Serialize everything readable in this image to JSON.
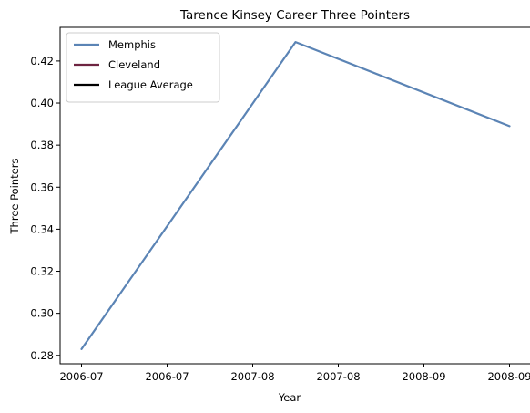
{
  "chart_data": {
    "type": "line",
    "title": "Tarence Kinsey Career Three Pointers",
    "xlabel": "Year",
    "ylabel": "Three Pointers",
    "x_ticks": [
      "2006-07",
      "2006-07",
      "2007-08",
      "2007-08",
      "2008-09",
      "2008-09"
    ],
    "y_ticks": [
      "0.28",
      "0.30",
      "0.32",
      "0.34",
      "0.36",
      "0.38",
      "0.40",
      "0.42"
    ],
    "ylim": [
      0.276,
      0.436
    ],
    "x_range": [
      -0.1,
      2.1
    ],
    "grid": false,
    "legend_position": "top-left",
    "series": [
      {
        "name": "Memphis",
        "color": "#5b84b5",
        "x": [
          0,
          1,
          2
        ],
        "values": [
          0.283,
          0.429,
          0.389
        ]
      },
      {
        "name": "Cleveland",
        "color": "#6e2441",
        "x": [],
        "values": []
      },
      {
        "name": "League Average",
        "color": "#000000",
        "x": [],
        "values": []
      }
    ]
  }
}
